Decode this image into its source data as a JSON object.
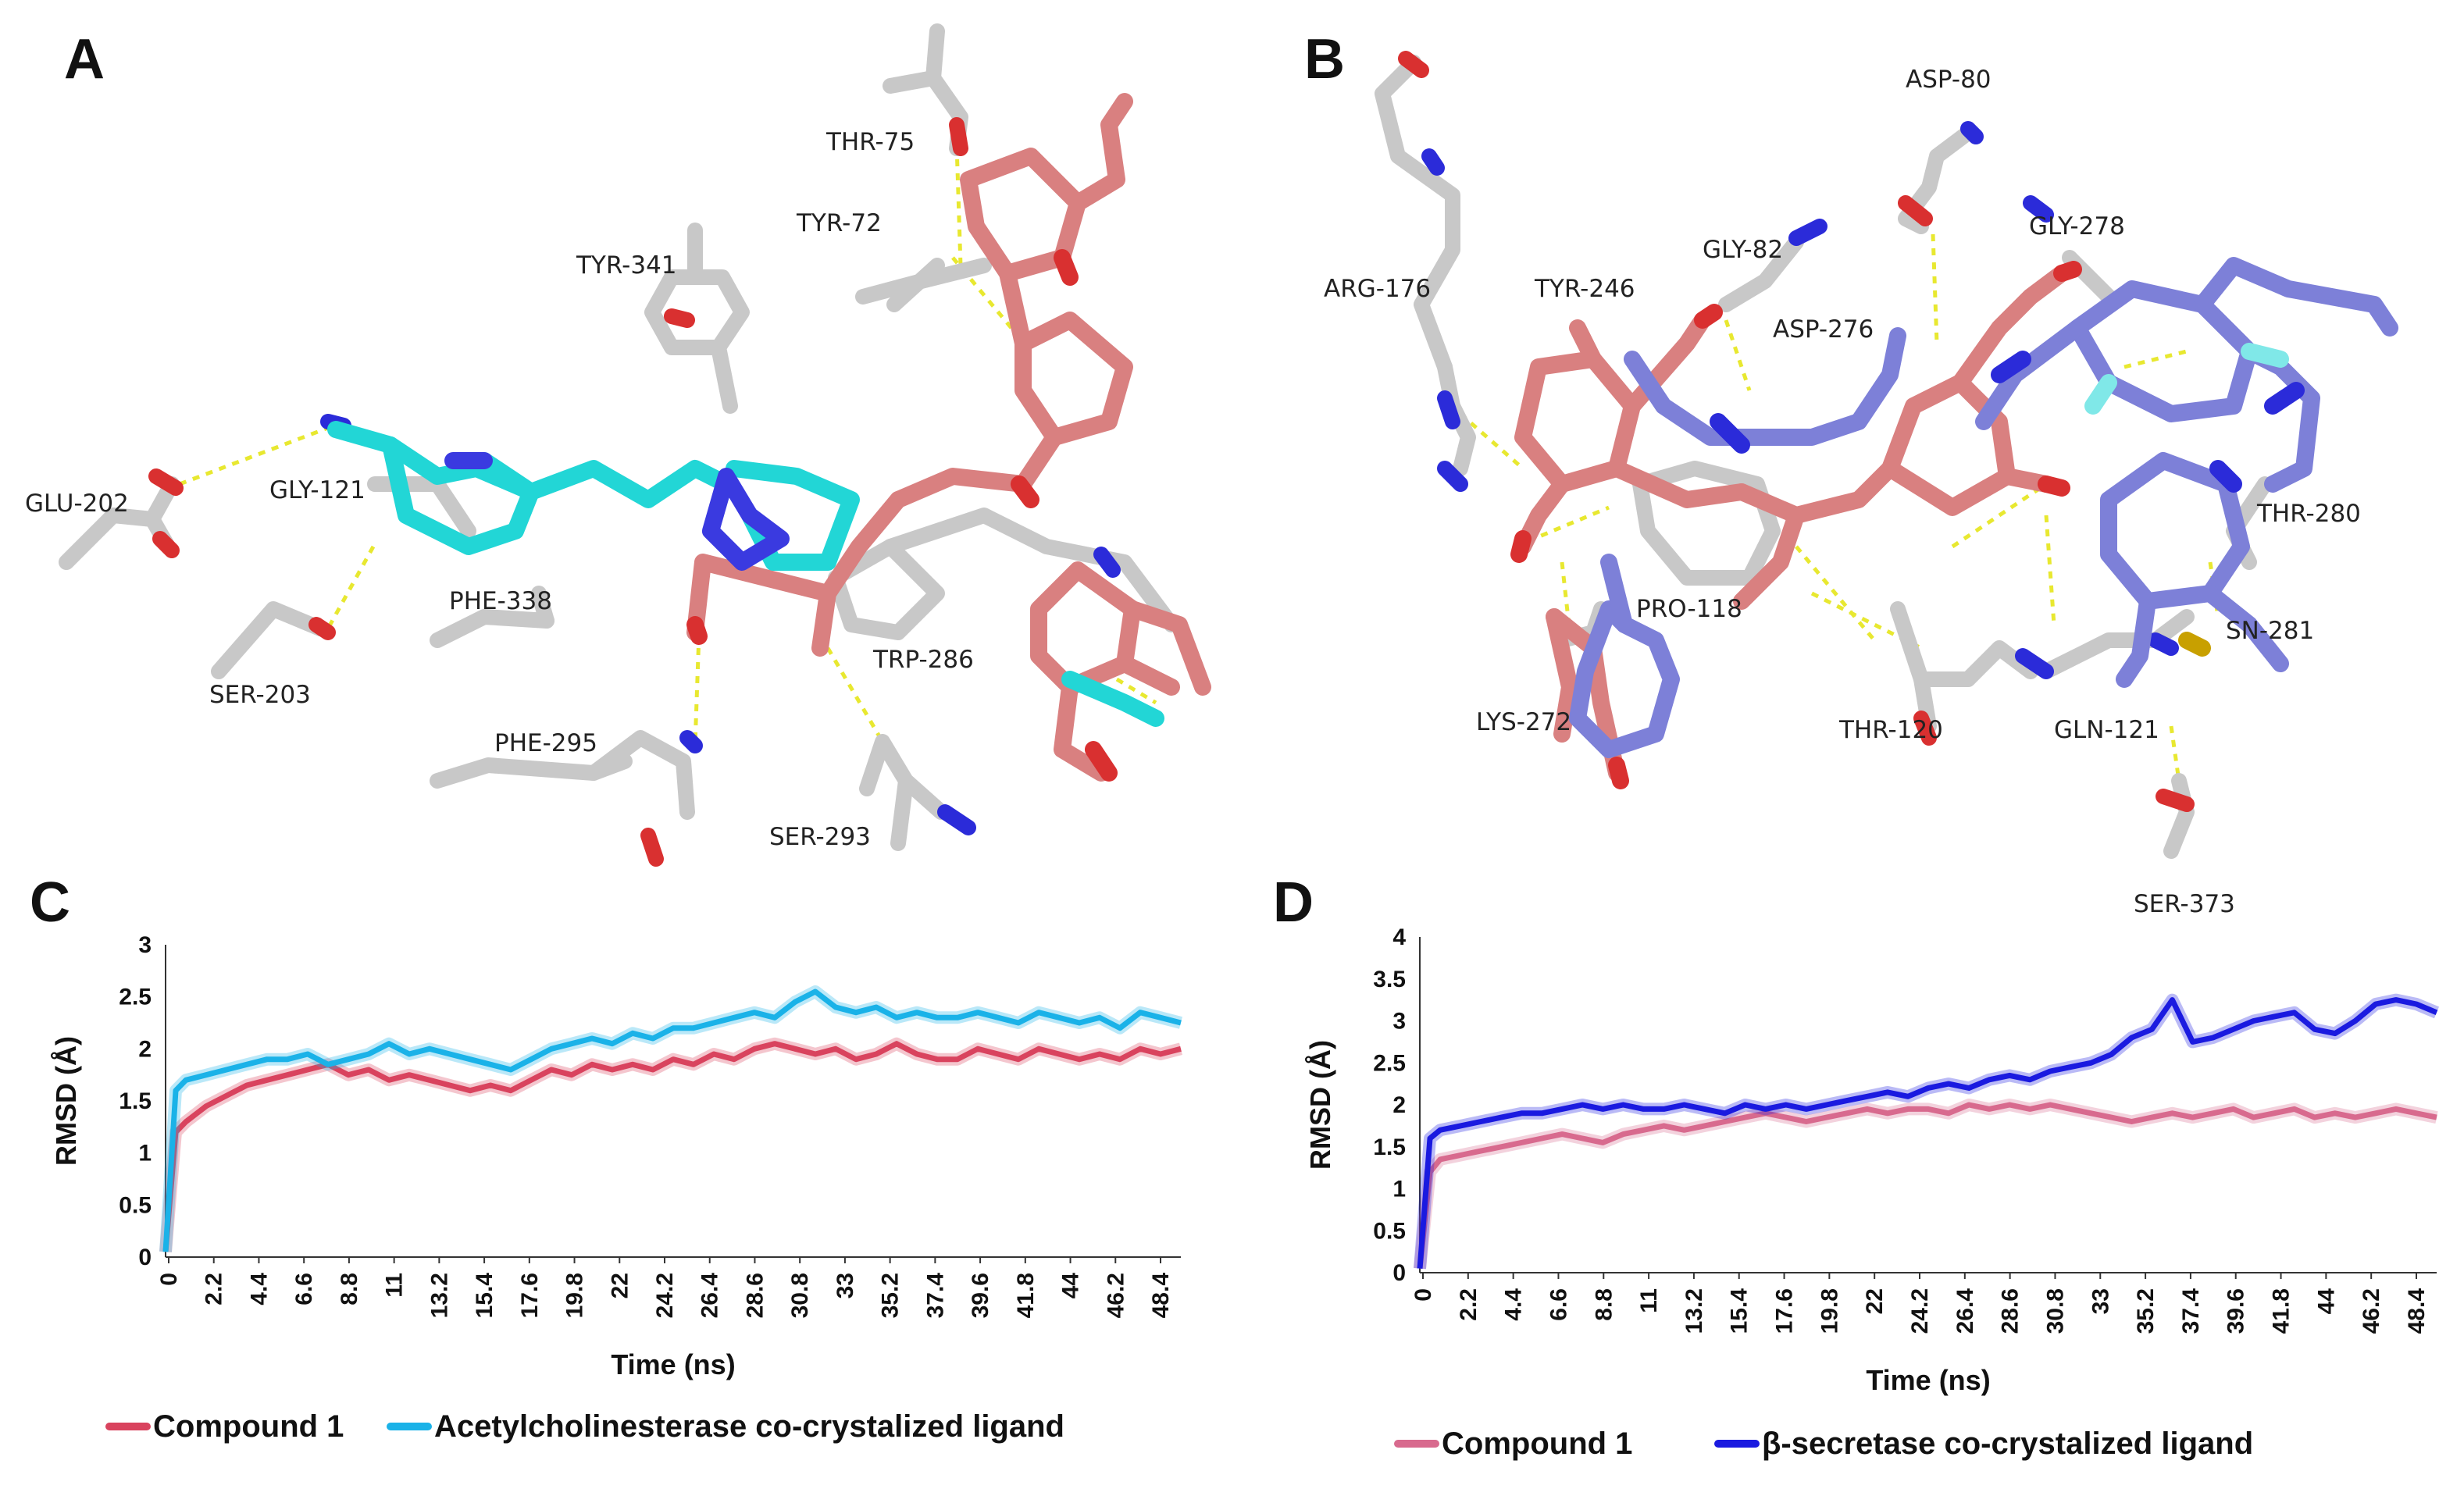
{
  "panel_letters": {
    "a": "A",
    "b": "B",
    "c": "C",
    "d": "D"
  },
  "panel_a": {
    "residues": {
      "thr75": "THR-75",
      "tyr72": "TYR-72",
      "tyr341": "TYR-341",
      "glu202": "GLU-202",
      "gly121": "GLY-121",
      "phe338": "PHE-338",
      "ser203": "SER-203",
      "phe295": "PHE-295",
      "trp286": "TRP-286",
      "ser293": "SER-293"
    }
  },
  "panel_b": {
    "residues": {
      "asp80": "ASP-80",
      "arg176": "ARG-176",
      "gly82": "GLY-82",
      "gly278": "GLY-278",
      "tyr246": "TYR-246",
      "asp276": "ASP-276",
      "thr280": "THR-280",
      "pro118": "PRO-118",
      "sn281": "SN-281",
      "lys272": "LYS-272",
      "thr120": "THR-120",
      "gln121": "GLN-121",
      "ser373": "SER-373"
    }
  },
  "colors": {
    "carbon_grey": "#c8c8c8",
    "ligand_salmon": "#d98080",
    "ligand_cyan": "#22d6d6",
    "ligand_slate": "#7d80d8",
    "nitrogen": "#2b2bd9",
    "oxygen": "#d93030",
    "sulfur": "#c8a000",
    "hbond": "#e8e830",
    "compound1_c": "#d9435e",
    "ref_c": "#1ab2e8",
    "compound1_d": "#d86a8e",
    "ref_d": "#1a1ae0"
  },
  "chart_data": [
    {
      "panel": "C",
      "type": "line",
      "xlabel": "Time (ns)",
      "ylabel": "RMSD (Å)",
      "x_tick_labels": [
        "0",
        "2.2",
        "4.4",
        "6.6",
        "8.8",
        "11",
        "13.2",
        "15.4",
        "17.6",
        "19.8",
        "22",
        "24.2",
        "26.4",
        "28.6",
        "30.8",
        "33",
        "35.2",
        "37.4",
        "39.6",
        "41.8",
        "44",
        "46.2",
        "48.4"
      ],
      "xlim": [
        0,
        50
      ],
      "yticks": [
        "0",
        "0.5",
        "1",
        "1.5",
        "2",
        "2.5",
        "3"
      ],
      "ylim": [
        0,
        3
      ],
      "series": [
        {
          "name": "Compound 1",
          "color": "#d9435e",
          "x": [
            0,
            0.5,
            1,
            2,
            3,
            4,
            5,
            6,
            7,
            8,
            9,
            10,
            11,
            12,
            13,
            14,
            15,
            16,
            17,
            18,
            19,
            20,
            21,
            22,
            23,
            24,
            25,
            26,
            27,
            28,
            29,
            30,
            31,
            32,
            33,
            34,
            35,
            36,
            37,
            38,
            39,
            40,
            41,
            42,
            43,
            44,
            45,
            46,
            47,
            48,
            49,
            50
          ],
          "y": [
            0.05,
            1.2,
            1.3,
            1.45,
            1.55,
            1.65,
            1.7,
            1.75,
            1.8,
            1.85,
            1.75,
            1.8,
            1.7,
            1.75,
            1.7,
            1.65,
            1.6,
            1.65,
            1.6,
            1.7,
            1.8,
            1.75,
            1.85,
            1.8,
            1.85,
            1.8,
            1.9,
            1.85,
            1.95,
            1.9,
            2.0,
            2.05,
            2.0,
            1.95,
            2.0,
            1.9,
            1.95,
            2.05,
            1.95,
            1.9,
            1.9,
            2.0,
            1.95,
            1.9,
            2.0,
            1.95,
            1.9,
            1.95,
            1.9,
            2.0,
            1.95,
            2.0
          ]
        },
        {
          "name": "Acetylcholinesterase co-crystalized ligand",
          "color": "#1ab2e8",
          "x": [
            0,
            0.5,
            1,
            2,
            3,
            4,
            5,
            6,
            7,
            8,
            9,
            10,
            11,
            12,
            13,
            14,
            15,
            16,
            17,
            18,
            19,
            20,
            21,
            22,
            23,
            24,
            25,
            26,
            27,
            28,
            29,
            30,
            31,
            32,
            33,
            34,
            35,
            36,
            37,
            38,
            39,
            40,
            41,
            42,
            43,
            44,
            45,
            46,
            47,
            48,
            49,
            50
          ],
          "y": [
            0.05,
            1.6,
            1.7,
            1.75,
            1.8,
            1.85,
            1.9,
            1.9,
            1.95,
            1.85,
            1.9,
            1.95,
            2.05,
            1.95,
            2.0,
            1.95,
            1.9,
            1.85,
            1.8,
            1.9,
            2.0,
            2.05,
            2.1,
            2.05,
            2.15,
            2.1,
            2.2,
            2.2,
            2.25,
            2.3,
            2.35,
            2.3,
            2.45,
            2.55,
            2.4,
            2.35,
            2.4,
            2.3,
            2.35,
            2.3,
            2.3,
            2.35,
            2.3,
            2.25,
            2.35,
            2.3,
            2.25,
            2.3,
            2.2,
            2.35,
            2.3,
            2.25
          ]
        }
      ]
    },
    {
      "panel": "D",
      "type": "line",
      "xlabel": "Time (ns)",
      "ylabel": "RMSD (Å)",
      "x_tick_labels": [
        "0",
        "2.2",
        "4.4",
        "6.6",
        "8.8",
        "11",
        "13.2",
        "15.4",
        "17.6",
        "19.8",
        "22",
        "24.2",
        "26.4",
        "28.6",
        "30.8",
        "33",
        "35.2",
        "37.4",
        "39.6",
        "41.8",
        "44",
        "46.2",
        "48.4"
      ],
      "xlim": [
        0,
        50
      ],
      "yticks": [
        "0",
        "0.5",
        "1",
        "1.5",
        "2",
        "2.5",
        "3",
        "3.5",
        "4"
      ],
      "ylim": [
        0,
        4
      ],
      "series": [
        {
          "name": "Compound 1",
          "color": "#d86a8e",
          "x": [
            0,
            0.5,
            1,
            2,
            3,
            4,
            5,
            6,
            7,
            8,
            9,
            10,
            11,
            12,
            13,
            14,
            15,
            16,
            17,
            18,
            19,
            20,
            21,
            22,
            23,
            24,
            25,
            26,
            27,
            28,
            29,
            30,
            31,
            32,
            33,
            34,
            35,
            36,
            37,
            38,
            39,
            40,
            41,
            42,
            43,
            44,
            45,
            46,
            47,
            48,
            49,
            50
          ],
          "y": [
            0.05,
            1.2,
            1.35,
            1.4,
            1.45,
            1.5,
            1.55,
            1.6,
            1.65,
            1.6,
            1.55,
            1.65,
            1.7,
            1.75,
            1.7,
            1.75,
            1.8,
            1.85,
            1.9,
            1.85,
            1.8,
            1.85,
            1.9,
            1.95,
            1.9,
            1.95,
            1.95,
            1.9,
            2.0,
            1.95,
            2.0,
            1.95,
            2.0,
            1.95,
            1.9,
            1.85,
            1.8,
            1.85,
            1.9,
            1.85,
            1.9,
            1.95,
            1.85,
            1.9,
            1.95,
            1.85,
            1.9,
            1.85,
            1.9,
            1.95,
            1.9,
            1.85
          ]
        },
        {
          "name": "β-secretase co-crystalized ligand",
          "color": "#1a1ae0",
          "x": [
            0,
            0.5,
            1,
            2,
            3,
            4,
            5,
            6,
            7,
            8,
            9,
            10,
            11,
            12,
            13,
            14,
            15,
            16,
            17,
            18,
            19,
            20,
            21,
            22,
            23,
            24,
            25,
            26,
            27,
            28,
            29,
            30,
            31,
            32,
            33,
            34,
            35,
            36,
            37,
            38,
            39,
            40,
            41,
            42,
            43,
            44,
            45,
            46,
            47,
            48,
            49,
            50
          ],
          "y": [
            0.05,
            1.6,
            1.7,
            1.75,
            1.8,
            1.85,
            1.9,
            1.9,
            1.95,
            2.0,
            1.95,
            2.0,
            1.95,
            1.95,
            2.0,
            1.95,
            1.9,
            2.0,
            1.95,
            2.0,
            1.95,
            2.0,
            2.05,
            2.1,
            2.15,
            2.1,
            2.2,
            2.25,
            2.2,
            2.3,
            2.35,
            2.3,
            2.4,
            2.45,
            2.5,
            2.6,
            2.8,
            2.9,
            3.25,
            2.75,
            2.8,
            2.9,
            3.0,
            3.05,
            3.1,
            2.9,
            2.85,
            3.0,
            3.2,
            3.25,
            3.2,
            3.1
          ]
        }
      ]
    }
  ]
}
